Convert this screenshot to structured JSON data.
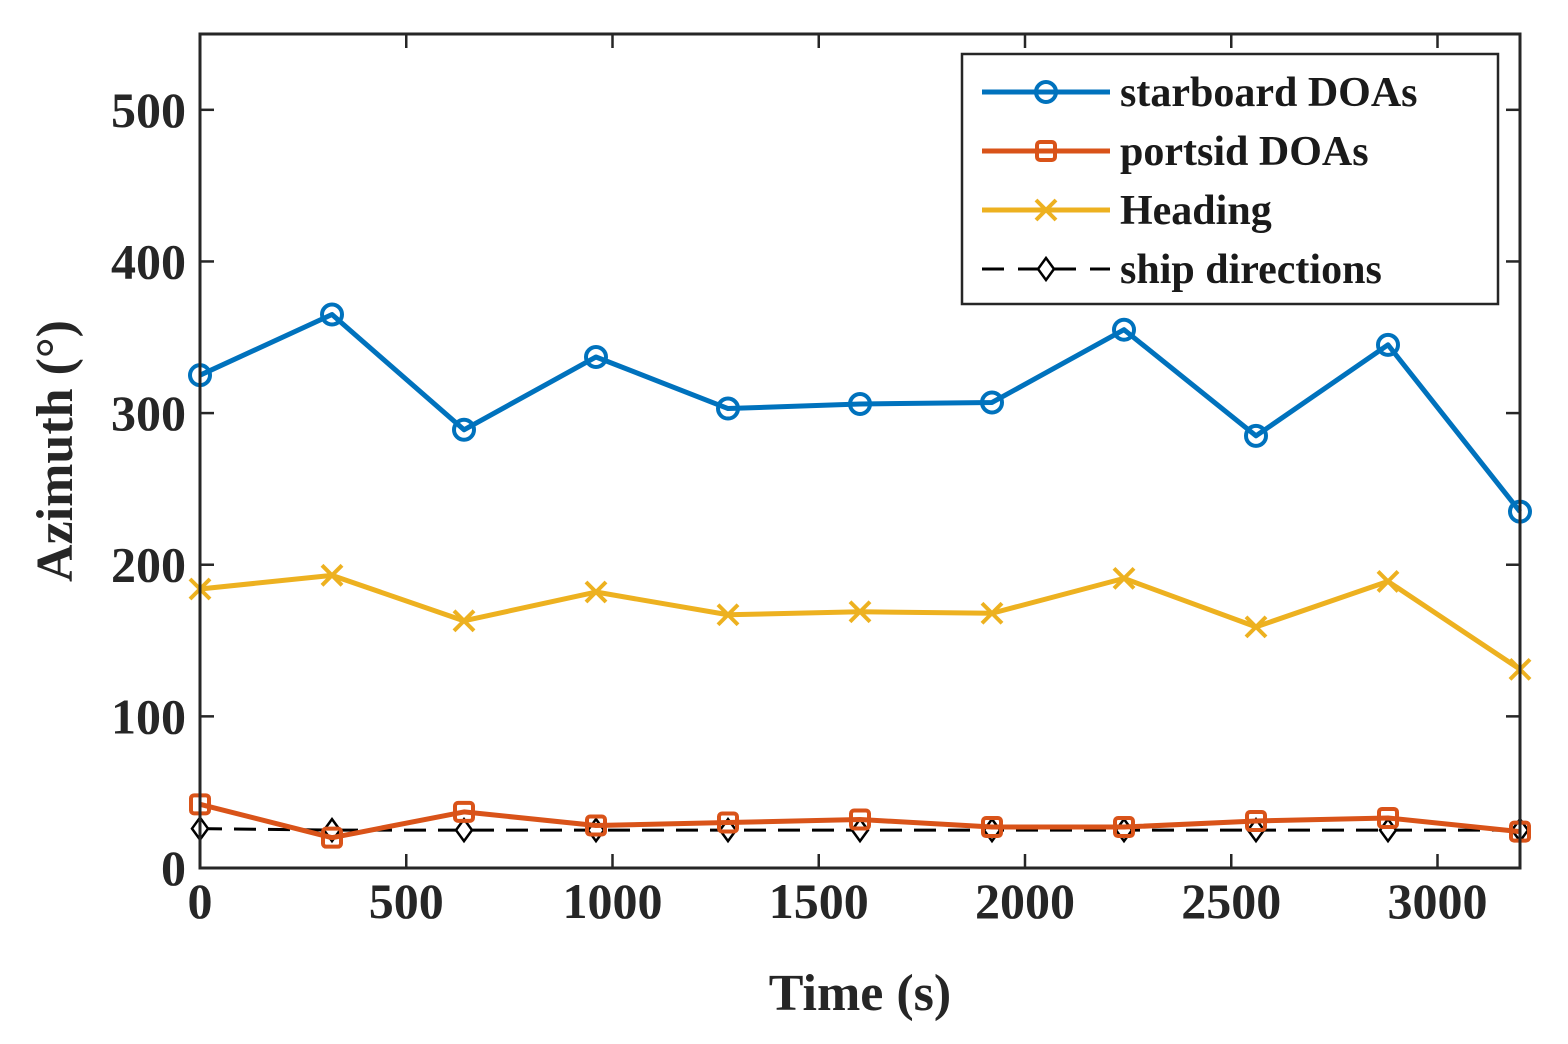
{
  "chart_data": {
    "type": "line",
    "title": "",
    "xlabel": "Time (s)",
    "ylabel": "Azimuth (°)",
    "xlim": [
      0,
      3200
    ],
    "ylim": [
      0,
      550
    ],
    "xticks": [
      0,
      500,
      1000,
      1500,
      2000,
      2500,
      3000
    ],
    "yticks": [
      0,
      100,
      200,
      300,
      400,
      500
    ],
    "xtick_labels": [
      "0",
      "500",
      "1000",
      "1500",
      "2000",
      "2500",
      "3000"
    ],
    "ytick_labels": [
      "0",
      "100",
      "200",
      "300",
      "400",
      "500"
    ],
    "x": [
      0,
      320,
      640,
      960,
      1280,
      1600,
      1920,
      2240,
      2560,
      2880,
      3200
    ],
    "legend_position": "top-right",
    "series": [
      {
        "name": "starboard DOAs",
        "color": "#0072BD",
        "marker": "circle",
        "dash": "solid",
        "values": [
          325,
          365,
          289,
          337,
          303,
          306,
          307,
          355,
          285,
          345,
          235
        ]
      },
      {
        "name": "portsid DOAs",
        "color": "#D95319",
        "marker": "square",
        "dash": "solid",
        "values": [
          42,
          20,
          37,
          28,
          30,
          32,
          27,
          27,
          31,
          33,
          24
        ]
      },
      {
        "name": "Heading",
        "color": "#EDB120",
        "marker": "x",
        "dash": "solid",
        "values": [
          184,
          193,
          163,
          182,
          167,
          169,
          168,
          191,
          159,
          189,
          131
        ]
      },
      {
        "name": "ship directions",
        "color": "#000000",
        "marker": "diamond",
        "dash": "dashed",
        "values": [
          26,
          25,
          25,
          25,
          25,
          25,
          25,
          25,
          25,
          25,
          25
        ]
      }
    ]
  }
}
